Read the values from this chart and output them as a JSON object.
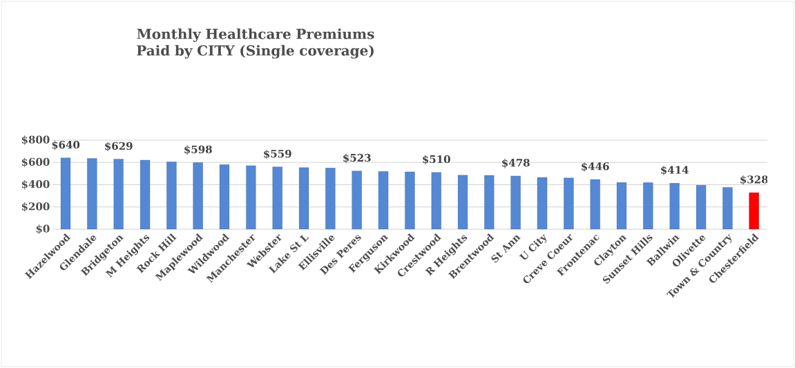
{
  "chart_data": {
    "type": "bar",
    "title": "Monthly Healthcare Premiums Paid by CITY (Single coverage)",
    "categories": [
      "Hazelwood",
      "Glendale",
      "Bridgeton",
      "M Heights",
      "Rock Hill",
      "Maplewood",
      "Wildwood",
      "Manchester",
      "Webster",
      "Lake St L",
      "Ellisville",
      "Des Peres",
      "Ferguson",
      "Kirkwood",
      "Crestwood",
      "R Heights",
      "Brentwood",
      "St Ann",
      "U City",
      "Creve Coeur",
      "Frontenac",
      "Clayton",
      "Sunset Hills",
      "Ballwin",
      "Olivette",
      "Town & Country",
      "Chesterfield"
    ],
    "values": [
      640,
      635,
      629,
      620,
      605,
      598,
      580,
      570,
      559,
      553,
      550,
      523,
      520,
      515,
      510,
      485,
      483,
      478,
      465,
      460,
      446,
      420,
      418,
      414,
      395,
      375,
      328
    ],
    "value_labels": [
      "$640",
      null,
      "$629",
      null,
      null,
      "$598",
      null,
      null,
      "$559",
      null,
      null,
      "$523",
      null,
      null,
      "$510",
      null,
      null,
      "$478",
      null,
      null,
      "$446",
      null,
      null,
      "$414",
      null,
      null,
      "$328"
    ],
    "colors": [
      "#5588d4",
      "#5588d4",
      "#5588d4",
      "#5588d4",
      "#5588d4",
      "#5588d4",
      "#5588d4",
      "#5588d4",
      "#5588d4",
      "#5588d4",
      "#5588d4",
      "#5588d4",
      "#5588d4",
      "#5588d4",
      "#5588d4",
      "#5588d4",
      "#5588d4",
      "#5588d4",
      "#5588d4",
      "#5588d4",
      "#5588d4",
      "#5588d4",
      "#5588d4",
      "#5588d4",
      "#5588d4",
      "#5588d4",
      "#ff0000"
    ],
    "ylim": [
      0,
      800
    ],
    "yticks": [
      {
        "value": 0,
        "label": "$0"
      },
      {
        "value": 200,
        "label": "$200"
      },
      {
        "value": 400,
        "label": "$400"
      },
      {
        "value": 600,
        "label": "$600"
      },
      {
        "value": 800,
        "label": "$800"
      }
    ],
    "grid": "y"
  }
}
